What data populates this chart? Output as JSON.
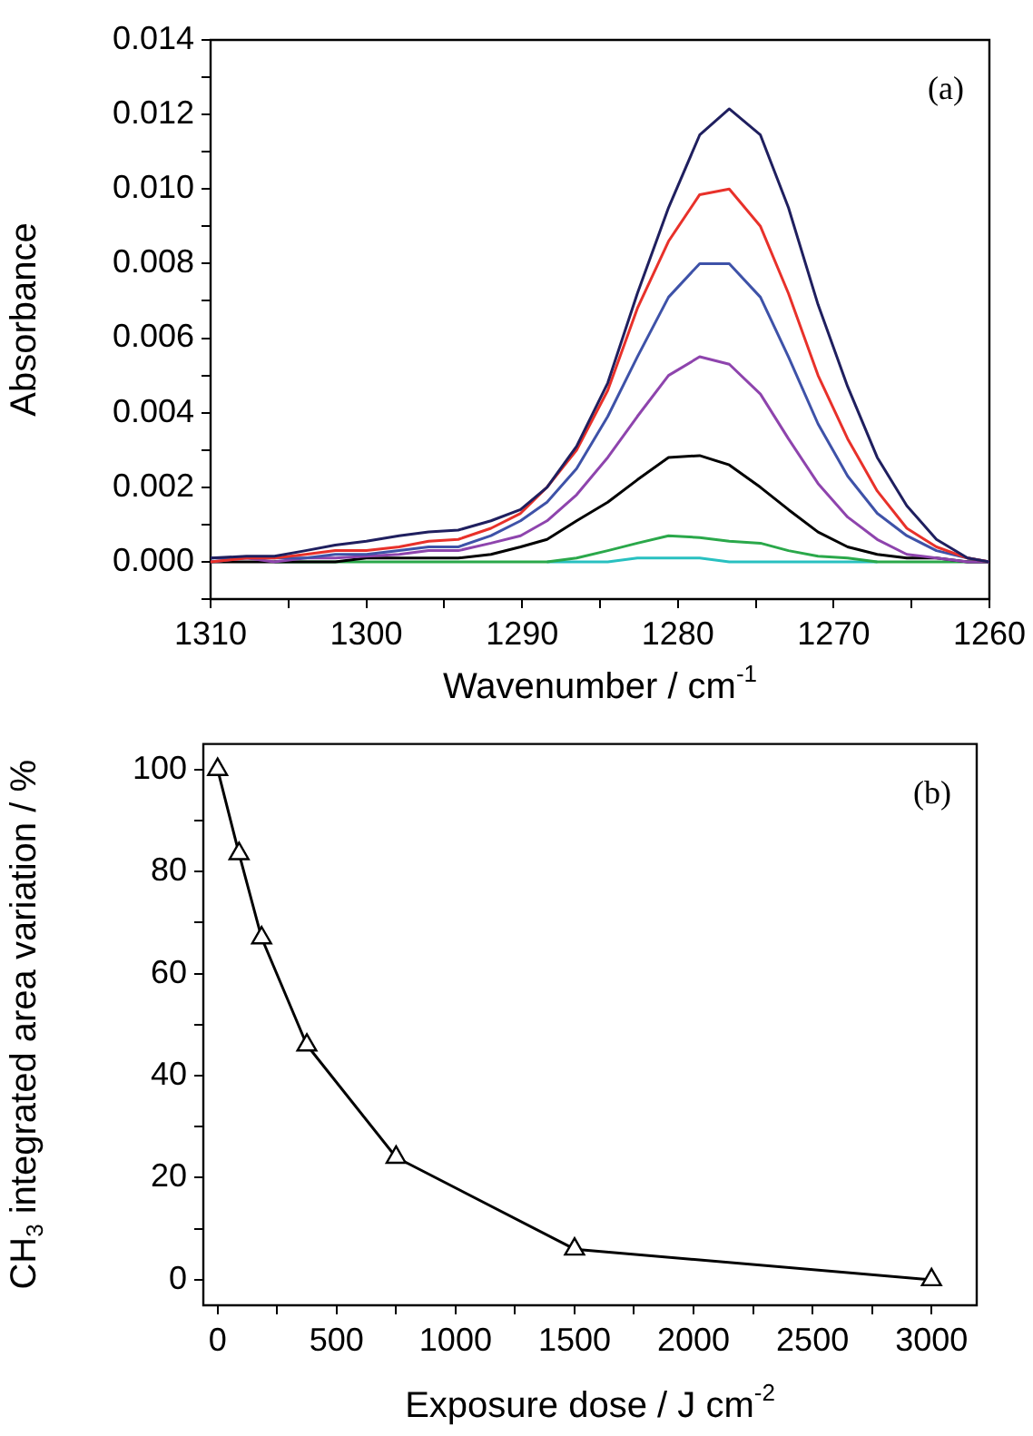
{
  "chart_data": [
    {
      "type": "line",
      "xlabel": "Wavenumber / cm$^{-1}$",
      "ylabel": "Absorbance",
      "annotations": [
        "(a)"
      ],
      "marker": "none",
      "grid": false,
      "x": [
        1310,
        1307.7,
        1305.9,
        1303.9,
        1302,
        1300,
        1297.9,
        1296,
        1294.1,
        1292,
        1290.1,
        1288.4,
        1286.5,
        1284.5,
        1282.6,
        1280.6,
        1278.6,
        1276.7,
        1274.7,
        1272.9,
        1271,
        1269.1,
        1267.2,
        1265.3,
        1263.4,
        1261.4,
        1260
      ],
      "xlim": [
        1310,
        1260
      ],
      "xticks": [
        1310,
        {
          "value": 1305,
          "label": null
        },
        1300,
        {
          "value": 1295,
          "label": null
        },
        1290,
        {
          "value": 1285,
          "label": null
        },
        1280,
        {
          "value": 1275,
          "label": null
        },
        1270,
        {
          "value": 1265,
          "label": null
        },
        1260
      ],
      "ylim": [
        -0.001,
        0.014
      ],
      "yticks": [
        {
          "value": -0.001,
          "label": null
        },
        "0.000",
        {
          "value": 0.001,
          "label": null
        },
        {
          "value": 0.002,
          "label": "0.002"
        },
        {
          "value": 0.003,
          "label": null
        },
        {
          "value": 0.004,
          "label": "0.004"
        },
        {
          "value": 0.005,
          "label": null
        },
        {
          "value": 0.006,
          "label": "0.006"
        },
        {
          "value": 0.007,
          "label": null
        },
        {
          "value": 0.008,
          "label": "0.008"
        },
        {
          "value": 0.009,
          "label": null
        },
        {
          "value": 0.01,
          "label": "0.010"
        },
        {
          "value": 0.011,
          "label": null
        },
        {
          "value": 0.012,
          "label": "0.012"
        },
        {
          "value": 0.013,
          "label": null
        },
        {
          "value": 0.014,
          "label": "0.014"
        }
      ],
      "series": [
        {
          "color": "#1f1f5f",
          "values": [
            0.0001,
            0.00015,
            0.00015,
            0.0003,
            0.00045,
            0.00055,
            0.0007,
            0.0008,
            0.00085,
            0.0011,
            0.0014,
            0.002,
            0.0031,
            0.0048,
            0.0072,
            0.0095,
            0.01145,
            0.01215,
            0.01145,
            0.0095,
            0.0069,
            0.0047,
            0.0028,
            0.0015,
            0.0006,
            0.0001,
            0
          ]
        },
        {
          "color": "#e8312a",
          "values": [
            0,
            0.0001,
            0.0001,
            0.0002,
            0.0003,
            0.0003,
            0.0004,
            0.00055,
            0.0006,
            0.0009,
            0.0013,
            0.002,
            0.003,
            0.0046,
            0.0068,
            0.0086,
            0.00985,
            0.01,
            0.009,
            0.0072,
            0.005,
            0.0033,
            0.0019,
            0.0009,
            0.0004,
            0.0001,
            0
          ]
        },
        {
          "color": "#3e52a8",
          "values": [
            0.0001,
            0.0001,
            0.0001,
            0.0001,
            0.0002,
            0.0002,
            0.0003,
            0.0004,
            0.0004,
            0.0007,
            0.0011,
            0.0016,
            0.0025,
            0.0039,
            0.0055,
            0.0071,
            0.008,
            0.008,
            0.0071,
            0.0055,
            0.0037,
            0.0023,
            0.0013,
            0.0007,
            0.0003,
            0.0001,
            0
          ]
        },
        {
          "color": "#8e44ad",
          "values": [
            0,
            0.0001,
            0,
            0.0001,
            0.0001,
            0.00015,
            0.0002,
            0.0003,
            0.0003,
            0.0005,
            0.0007,
            0.0011,
            0.0018,
            0.0028,
            0.0039,
            0.005,
            0.0055,
            0.0053,
            0.0045,
            0.0033,
            0.0021,
            0.0012,
            0.0006,
            0.0002,
            0.0001,
            0,
            0
          ]
        },
        {
          "color": "#000000",
          "values": [
            0,
            0,
            0,
            0,
            0,
            0.0001,
            0.0001,
            0.0001,
            0.0001,
            0.0002,
            0.0004,
            0.0006,
            0.0011,
            0.0016,
            0.0022,
            0.0028,
            0.00285,
            0.0026,
            0.002,
            0.0014,
            0.0008,
            0.0004,
            0.0002,
            0.0001,
            0.0001,
            0,
            0
          ]
        },
        {
          "color": "#2aa84a",
          "values": [
            null,
            null,
            0,
            0,
            0,
            0,
            0,
            0,
            0,
            0,
            0,
            0,
            0.0001,
            0.0003,
            0.0005,
            0.0007,
            0.00065,
            0.00055,
            0.0005,
            0.0003,
            0.00015,
            0.0001,
            0,
            0,
            0,
            0,
            0
          ]
        },
        {
          "color": "#28c0c0",
          "values": [
            null,
            null,
            null,
            null,
            null,
            null,
            null,
            null,
            null,
            null,
            null,
            0,
            0,
            0,
            0.0001,
            0.0001,
            0.0001,
            0,
            0,
            0,
            0,
            0,
            0,
            null,
            null,
            null,
            null
          ]
        }
      ]
    },
    {
      "type": "line",
      "xlabel": "Exposure dose / J cm$^{-2}$",
      "ylabel": "CH$_{3}$ integrated area variation / %",
      "annotations": [
        "(b)"
      ],
      "marker": "triangle",
      "grid": false,
      "x": [
        0,
        90,
        185,
        375,
        750,
        1500,
        3000
      ],
      "xlim": [
        -60,
        3190
      ],
      "xticks": [
        0,
        {
          "value": 250,
          "label": null
        },
        500,
        {
          "value": 750,
          "label": null
        },
        1000,
        {
          "value": 1250,
          "label": null
        },
        1500,
        {
          "value": 1750,
          "label": null
        },
        2000,
        {
          "value": 2250,
          "label": null
        },
        2500,
        {
          "value": 2750,
          "label": null
        },
        3000
      ],
      "ylim": [
        -5,
        105
      ],
      "yticks": [
        0,
        {
          "value": 10,
          "label": null
        },
        20,
        {
          "value": 30,
          "label": null
        },
        40,
        {
          "value": 50,
          "label": null
        },
        60,
        {
          "value": 70,
          "label": null
        },
        80,
        {
          "value": 90,
          "label": null
        },
        100
      ],
      "series": [
        {
          "color": "#000000",
          "values": [
            100,
            83.5,
            67,
            46,
            24,
            6,
            0
          ]
        }
      ]
    }
  ]
}
